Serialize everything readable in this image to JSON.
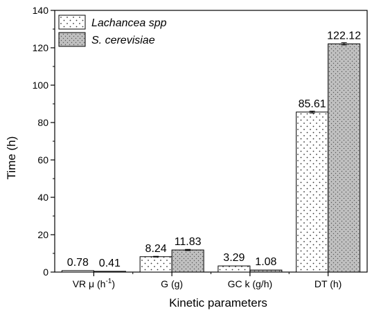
{
  "chart_data": {
    "type": "bar",
    "title": "",
    "xlabel": "Kinetic parameters",
    "ylabel": "Time (h)",
    "ylim": [
      0,
      140
    ],
    "yticks": [
      0,
      20,
      40,
      60,
      80,
      100,
      120,
      140
    ],
    "categories": [
      {
        "main": "VR μ (h",
        "sup": "-1",
        "tail": ")"
      },
      {
        "main": "G (g)",
        "sup": "",
        "tail": ""
      },
      {
        "main": "GC k (g/h)",
        "sup": "",
        "tail": ""
      },
      {
        "main": "DT (h)",
        "sup": "",
        "tail": ""
      }
    ],
    "series": [
      {
        "name": "Lachancea spp",
        "values": [
          0.78,
          8.24,
          3.29,
          85.61
        ],
        "labels": [
          "0.78",
          "8.24",
          "3.29",
          "85.61"
        ],
        "errors": [
          0,
          0.2,
          0,
          0.5
        ],
        "fill": "#ffffff",
        "pattern": "sparse-dots"
      },
      {
        "name": "S. cerevisiae",
        "values": [
          0.41,
          11.83,
          1.08,
          122.12
        ],
        "labels": [
          "0.41",
          "11.83",
          "1.08",
          "122.12"
        ],
        "errors": [
          0,
          0.3,
          0,
          0.6
        ],
        "fill": "#c0c0c0",
        "pattern": "dense-dots"
      }
    ],
    "legend_position": "top-left",
    "grid": false
  }
}
